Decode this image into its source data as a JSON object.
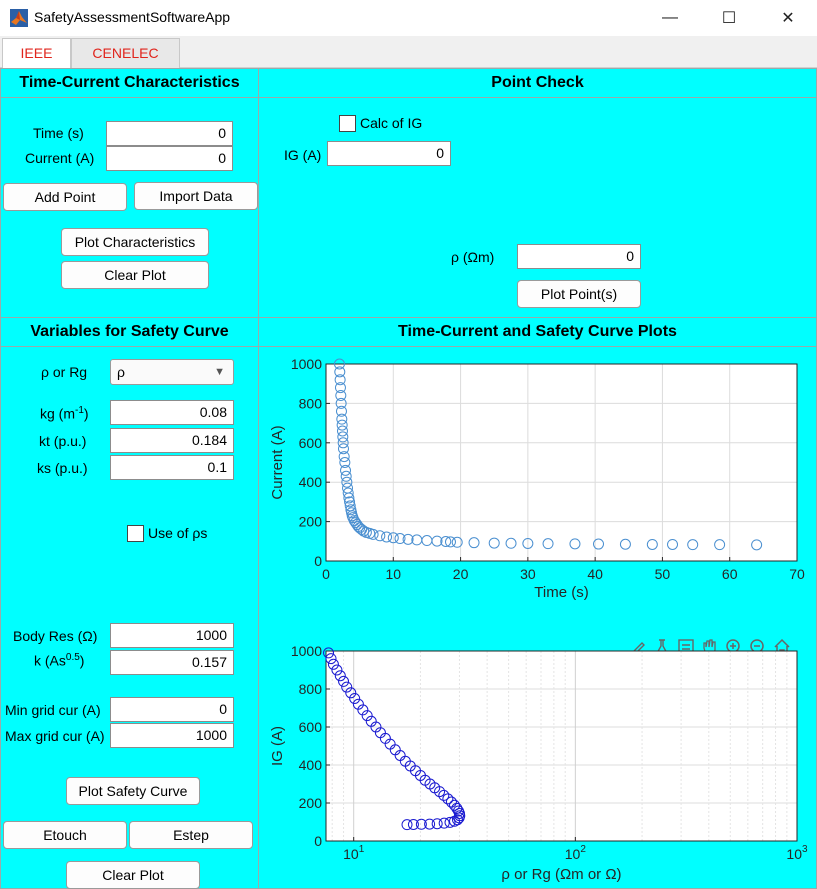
{
  "window": {
    "title": "SafetyAssessmentSoftwareApp",
    "minimize": "—",
    "maximize": "☐",
    "close": "✕"
  },
  "tabs": [
    {
      "label": "IEEE"
    },
    {
      "label": "CENELEC"
    }
  ],
  "tcc_panel": {
    "title": "Time-Current Characteristics",
    "time_label": "Time (s)",
    "time_value": "0",
    "current_label": "Current (A)",
    "current_value": "0",
    "add_point": "Add Point",
    "import_data": "Import Data",
    "plot_characteristics": "Plot Characteristics",
    "clear_plot": "Clear Plot"
  },
  "point_check": {
    "title": "Point Check",
    "calc_ig_label": "Calc of IG",
    "ig_label": "IG (A)",
    "ig_value": "0",
    "rho_label": "ρ (Ωm)",
    "rho_value": "0",
    "plot_points": "Plot Point(s)"
  },
  "safety_vars": {
    "title": "Variables for Safety Curve",
    "rho_rg_label": "ρ or Rg",
    "rho_rg_selected": "ρ",
    "kg_label": "kg (m",
    "kg_sup": "-1",
    "kg_close": ")",
    "kg_value": "0.08",
    "kt_label": "kt (p.u.)",
    "kt_value": "0.184",
    "ks_label": "ks (p.u.)",
    "ks_value": "0.1",
    "use_rhos_label": "Use of ρs",
    "body_res_label": "Body Res (Ω)",
    "body_res_value": "1000",
    "k_label": "k (As",
    "k_sup": "0.5",
    "k_close": ")",
    "k_value": "0.157",
    "min_grid_label": "Min grid cur (A)",
    "min_grid_value": "0",
    "max_grid_label": "Max grid cur (A)",
    "max_grid_value": "1000",
    "plot_safety_curve": "Plot Safety Curve",
    "etouch": "Etouch",
    "estep": "Estep",
    "clear_plot": "Clear Plot"
  },
  "plots_panel": {
    "title": "Time-Current and Safety Curve Plots",
    "toolbar_icons": [
      "brush-icon",
      "flask-icon",
      "datatip-icon",
      "pan-icon",
      "zoom-in-icon",
      "zoom-out-icon",
      "home-icon"
    ]
  },
  "chart_data": [
    {
      "type": "scatter",
      "title": "",
      "xlabel": "Time (s)",
      "ylabel": "Current (A)",
      "xlim": [
        0,
        70
      ],
      "ylim": [
        0,
        1000
      ],
      "xticks": [
        0,
        10,
        20,
        30,
        40,
        50,
        60,
        70
      ],
      "yticks": [
        0,
        200,
        400,
        600,
        800,
        1000
      ],
      "grid": true,
      "marker_color": "#4a8fd0",
      "x": [
        2.0,
        2.05,
        2.1,
        2.15,
        2.2,
        2.25,
        2.3,
        2.35,
        2.4,
        2.45,
        2.5,
        2.55,
        2.6,
        2.7,
        2.8,
        2.9,
        3.0,
        3.1,
        3.2,
        3.3,
        3.4,
        3.5,
        3.6,
        3.7,
        3.8,
        3.9,
        4.0,
        4.2,
        4.4,
        4.6,
        4.8,
        5.0,
        5.3,
        5.6,
        6.0,
        6.5,
        7.0,
        8.0,
        9.0,
        10.0,
        11.0,
        12.2,
        13.5,
        15.0,
        16.5,
        17.8,
        18.5,
        19.5,
        22.0,
        25.0,
        27.5,
        30.0,
        33.0,
        37.0,
        40.5,
        44.5,
        48.5,
        51.5,
        54.5,
        58.5,
        64.0
      ],
      "y": [
        1000,
        960,
        920,
        880,
        840,
        800,
        760,
        720,
        690,
        660,
        630,
        600,
        570,
        530,
        500,
        460,
        430,
        400,
        370,
        345,
        320,
        300,
        280,
        260,
        245,
        230,
        220,
        205,
        195,
        185,
        175,
        168,
        160,
        152,
        145,
        140,
        135,
        128,
        122,
        118,
        114,
        110,
        107,
        104,
        101,
        99,
        97,
        95,
        93,
        91,
        90,
        89,
        88,
        87,
        86,
        85,
        84,
        84,
        83,
        83,
        82
      ]
    },
    {
      "type": "scatter",
      "title": "",
      "xlabel": "ρ or Rg (Ωm or Ω)",
      "ylabel": "IG (A)",
      "xscale": "log",
      "xlim": [
        7.5,
        1000
      ],
      "ylim": [
        0,
        1000
      ],
      "xticks": [
        10,
        100,
        1000
      ],
      "xtick_labels": [
        "10",
        "10",
        "10"
      ],
      "xtick_exponents": [
        "1",
        "2",
        "3"
      ],
      "yticks": [
        0,
        200,
        400,
        600,
        800,
        1000
      ],
      "grid": true,
      "marker_color": "#1a1ad0",
      "x": [
        7.7,
        7.9,
        8.1,
        8.4,
        8.7,
        9.0,
        9.3,
        9.7,
        10.1,
        10.5,
        11.0,
        11.5,
        12.0,
        12.6,
        13.2,
        13.9,
        14.6,
        15.4,
        16.2,
        17.1,
        18.0,
        19.0,
        20.0,
        21.0,
        22.1,
        23.2,
        24.4,
        25.5,
        26.6,
        27.6,
        28.5,
        29.2,
        29.7,
        30.0,
        30.1,
        29.9,
        29.4,
        28.5,
        27.2,
        25.6,
        23.8,
        22.0,
        20.2,
        18.6,
        17.4
      ],
      "y": [
        990,
        960,
        930,
        900,
        870,
        840,
        810,
        780,
        750,
        720,
        690,
        660,
        630,
        600,
        570,
        540,
        510,
        480,
        450,
        420,
        395,
        370,
        345,
        320,
        300,
        280,
        260,
        240,
        222,
        205,
        188,
        172,
        158,
        145,
        133,
        122,
        112,
        104,
        98,
        94,
        91,
        89,
        88,
        87,
        86
      ]
    }
  ]
}
